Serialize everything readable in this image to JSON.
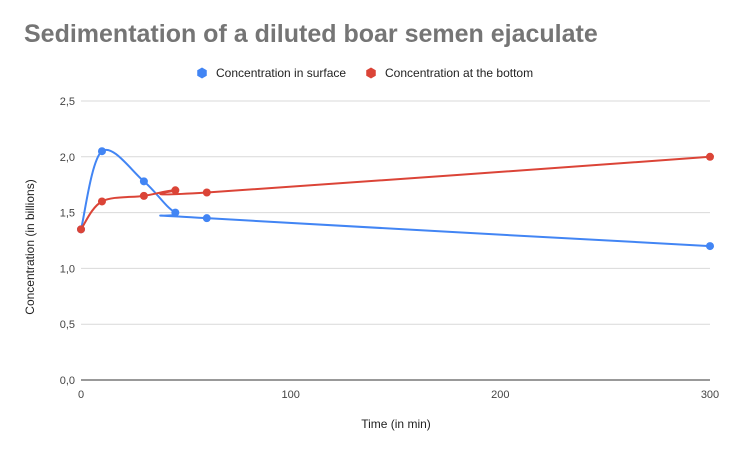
{
  "chart_data": {
    "type": "line",
    "title": "Sedimentation of a diluted boar semen ejaculate",
    "xlabel": "Time (in min)",
    "ylabel": "Concentration (in billions)",
    "xlim": [
      0,
      300
    ],
    "ylim": [
      0,
      2.5
    ],
    "x_ticks": [
      "0",
      "100",
      "200",
      "300"
    ],
    "y_ticks": [
      "0,0",
      "0,5",
      "1,0",
      "1,5",
      "2,0",
      "2,5"
    ],
    "grid": true,
    "legend_position": "top",
    "series": [
      {
        "name": "Concentration in surface",
        "color": "#4285f4",
        "x": [
          0,
          10,
          30,
          45,
          60,
          300
        ],
        "y": [
          1.35,
          2.05,
          1.78,
          1.5,
          1.45,
          1.2
        ]
      },
      {
        "name": "Concentration at the bottom",
        "color": "#db4437",
        "x": [
          0,
          10,
          30,
          45,
          60,
          300
        ],
        "y": [
          1.35,
          1.6,
          1.65,
          1.7,
          1.68,
          2.0
        ]
      }
    ]
  }
}
